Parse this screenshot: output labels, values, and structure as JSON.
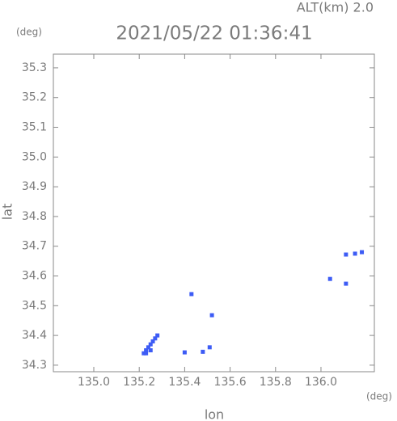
{
  "chart_data": {
    "type": "scatter",
    "title": "2021/05/22 01:36:41",
    "annotation": "ALT(km) 2.0",
    "xlabel": "lon",
    "ylabel": "lat",
    "xunit": "(deg)",
    "yunit": "(deg)",
    "color": "#3d5cf5",
    "x": [
      135.22,
      135.23,
      135.24,
      135.25,
      135.26,
      135.27,
      135.28,
      135.23,
      135.25,
      135.4,
      135.43,
      135.48,
      135.51,
      135.52,
      136.04,
      136.11,
      136.11,
      136.15,
      136.18
    ],
    "y": [
      34.34,
      34.35,
      34.36,
      34.37,
      34.38,
      34.39,
      34.4,
      34.34,
      34.35,
      34.343,
      34.539,
      34.345,
      34.36,
      34.468,
      34.59,
      34.574,
      34.672,
      34.675,
      34.68
    ],
    "xlim": [
      134.822,
      136.235
    ],
    "ylim": [
      34.278,
      35.346
    ],
    "xticks": [
      {
        "value": 135,
        "label": "135.0"
      },
      135.2,
      135.4,
      135.6,
      135.8,
      {
        "value": 136,
        "label": "136.0"
      }
    ],
    "yticks": [
      34.3,
      34.4,
      34.5,
      34.6,
      34.7,
      34.8,
      34.9,
      {
        "value": 35,
        "label": "35.0"
      },
      35.1,
      35.2,
      35.3
    ],
    "grid": false
  }
}
